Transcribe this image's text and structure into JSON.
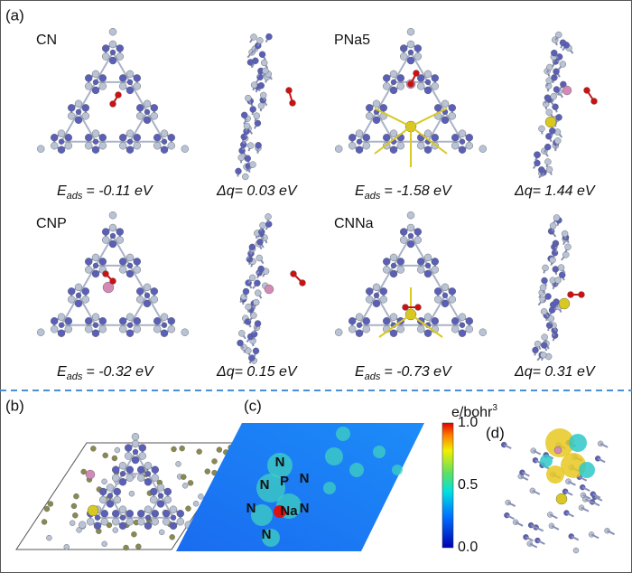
{
  "panels": {
    "a": {
      "label": "(a)",
      "structures": [
        {
          "name": "CN",
          "energy": {
            "symbol": "E",
            "sub": "ads",
            "text": "= -0.11 eV"
          },
          "charge": "Δq= 0.03 eV"
        },
        {
          "name": "PNa5",
          "energy": {
            "symbol": "E",
            "sub": "ads",
            "text": "= -1.58 eV"
          },
          "charge": "Δq= 1.44 eV"
        },
        {
          "name": "CNP",
          "energy": {
            "symbol": "E",
            "sub": "ads",
            "text": "= -0.32 eV"
          },
          "charge": "Δq= 0.15 eV"
        },
        {
          "name": "CNNa",
          "energy": {
            "symbol": "E",
            "sub": "ads",
            "text": "= -0.73 eV"
          },
          "charge": "Δq= 0.31 eV"
        }
      ]
    },
    "b": {
      "label": "(b)"
    },
    "c": {
      "label": "(c)",
      "atoms": [
        "N",
        "N",
        "P",
        "N",
        "N",
        "Na",
        "N",
        "N"
      ],
      "colorbar": {
        "title": "e/bohr",
        "sup": "3",
        "ticks": [
          "1.0",
          "0.5",
          "0.0"
        ]
      }
    },
    "d": {
      "label": "(d)"
    }
  }
}
